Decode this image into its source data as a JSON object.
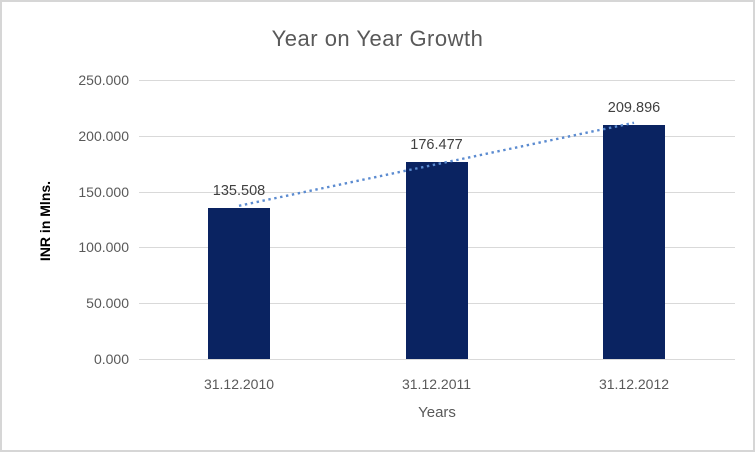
{
  "chart_data": {
    "type": "bar",
    "title": "Year on Year Growth",
    "categories": [
      "31.12.2010",
      "31.12.2011",
      "31.12.2012"
    ],
    "values": [
      135.508,
      176.477,
      209.896
    ],
    "data_labels": [
      "135.508",
      "176.477",
      "209.896"
    ],
    "xlabel": "Years",
    "ylabel": "INR in Mlns.",
    "ylim": [
      0,
      250
    ],
    "ytick_step": 50,
    "ytick_labels_top_to_bottom": [
      "250.000",
      "200.000",
      "150.000",
      "100.000",
      "50.000",
      "0.000"
    ],
    "grid": true,
    "legend": "none",
    "trendline": {
      "type": "linear",
      "style": "dotted"
    },
    "colors": {
      "bar": "#0A2361",
      "trendline": "#5B8BD0",
      "gridline": "#D9D9D9",
      "title_text": "#595959",
      "axis_text": "#595959",
      "data_label_text": "#404040",
      "axis_title_text": "#000000",
      "frame_border": "#D6D6D6",
      "background": "#FFFFFF"
    }
  }
}
